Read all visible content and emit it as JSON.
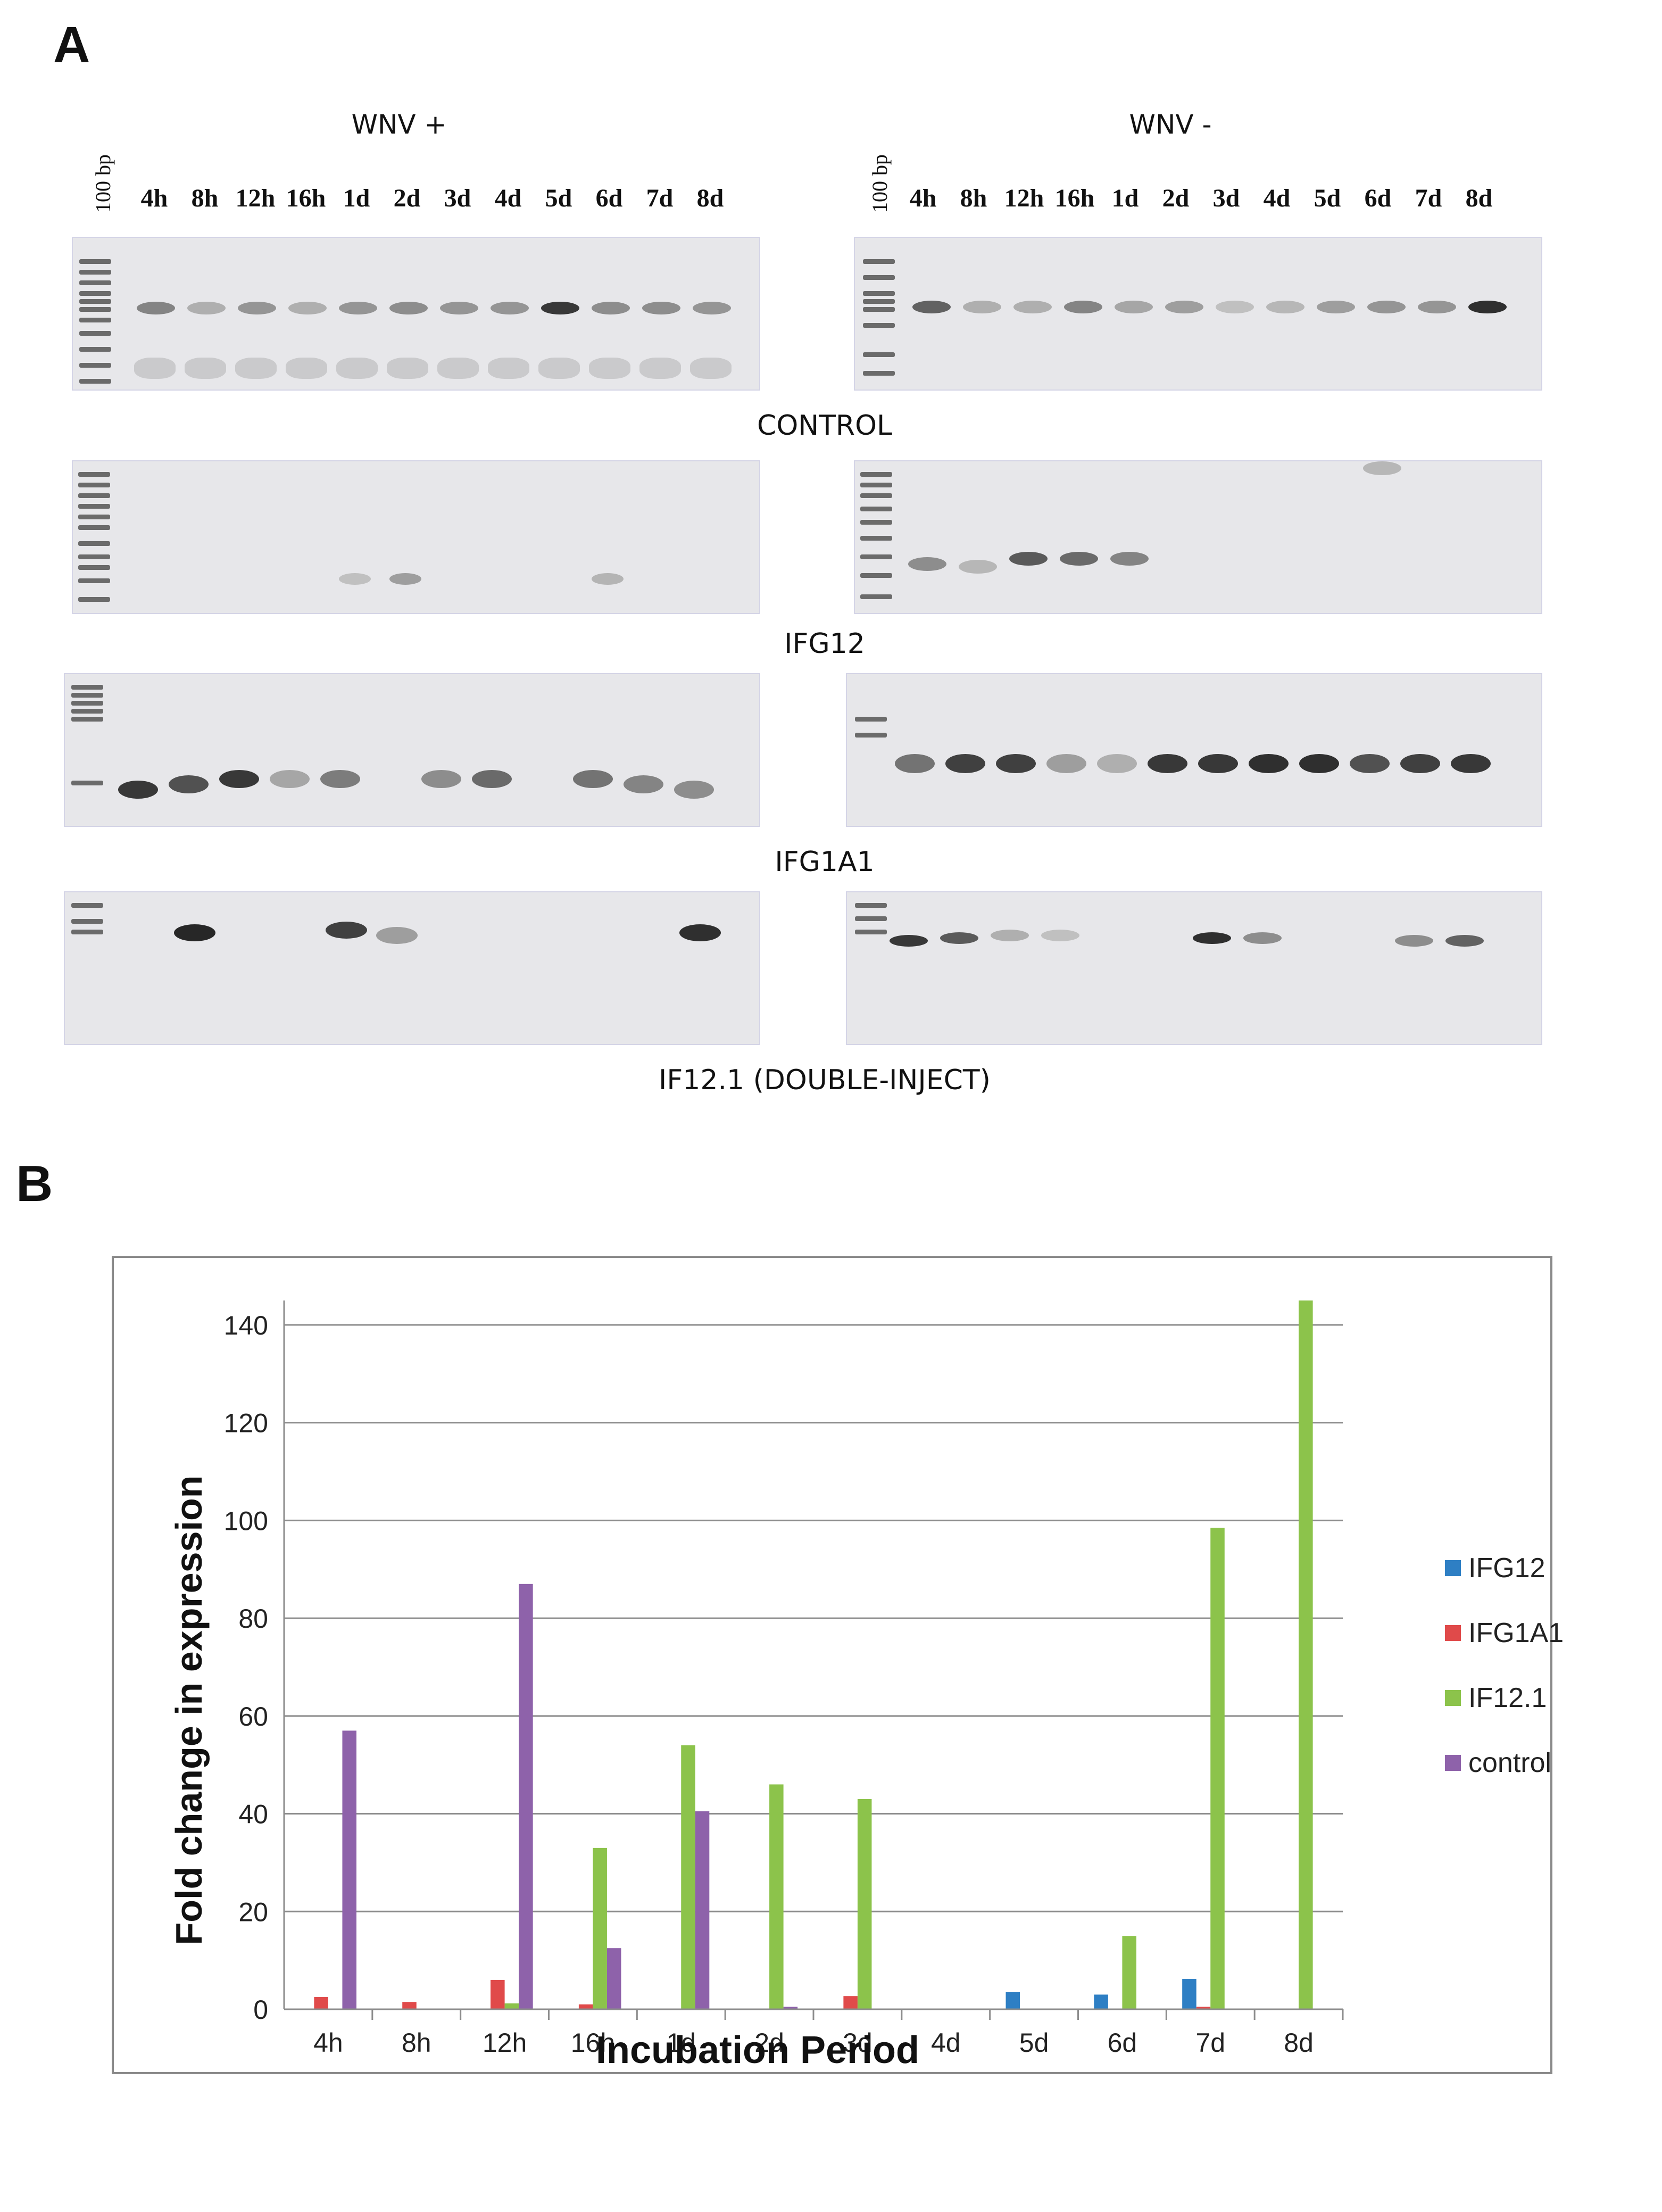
{
  "panel_a": {
    "letter": "A",
    "groups": [
      {
        "title": "WNV +",
        "ladder_label": "100 bp"
      },
      {
        "title": "WNV -",
        "ladder_label": "100 bp"
      }
    ],
    "lanes": [
      "4h",
      "8h",
      "12h",
      "16h",
      "1d",
      "2d",
      "3d",
      "4d",
      "5d",
      "6d",
      "7d",
      "8d"
    ],
    "gel_captions": [
      "CONTROL",
      "IFG12",
      "IFG1A1",
      "IF12.1 (DOUBLE-INJECT)"
    ]
  },
  "panel_b": {
    "letter": "B"
  },
  "chart_data": {
    "type": "bar",
    "categories": [
      "4h",
      "8h",
      "12h",
      "16h",
      "1d",
      "2d",
      "3d",
      "4d",
      "5d",
      "6d",
      "7d",
      "8d"
    ],
    "series": [
      {
        "name": "IFG12",
        "color": "#2e7fc4",
        "values": [
          0,
          0,
          0,
          0,
          0,
          0,
          0,
          0,
          3.5,
          3,
          6.2,
          0
        ]
      },
      {
        "name": "IFG1A1",
        "color": "#e04a4a",
        "values": [
          2.5,
          1.5,
          6,
          1,
          0,
          0,
          2.7,
          0,
          0,
          0,
          0.5,
          0
        ]
      },
      {
        "name": "IF12.1",
        "color": "#8cc34b",
        "values": [
          0,
          0,
          1.2,
          33,
          54,
          46,
          43,
          0,
          0,
          15,
          98.5,
          145
        ]
      },
      {
        "name": "control",
        "color": "#8e62aa",
        "values": [
          57,
          0,
          87,
          12.5,
          40.5,
          0.5,
          0,
          0,
          0,
          0,
          0,
          0
        ]
      }
    ],
    "xlabel": "Incubation Period",
    "ylabel": "Fold change in expression",
    "ylim": [
      0,
      145
    ],
    "yticks": [
      0,
      20,
      40,
      60,
      80,
      100,
      120,
      140
    ],
    "grid": true,
    "legend": "right"
  }
}
